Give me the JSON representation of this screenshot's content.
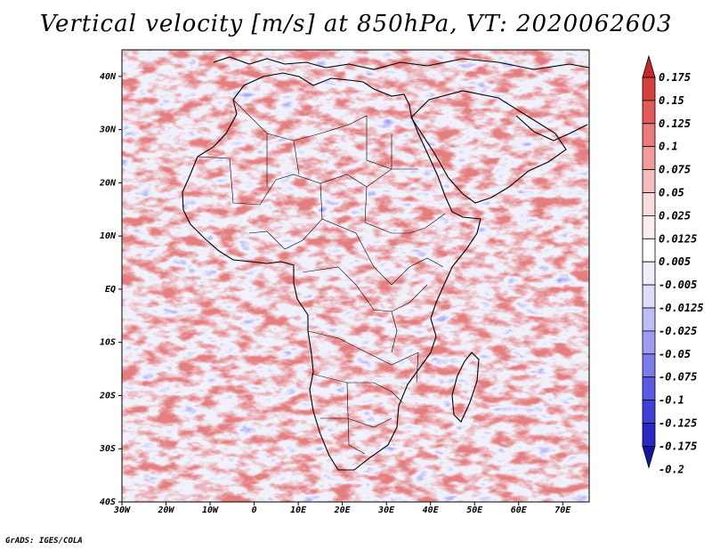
{
  "title": "Vertical velocity [m/s] at 850hPa, VT: 2020062603",
  "credit": "GrADS: IGES/COLA",
  "map": {
    "region": "Africa",
    "lon_range": [
      -30,
      76
    ],
    "lat_range": [
      -40,
      45
    ],
    "lon_ticks": [
      "30W",
      "20W",
      "10W",
      "0",
      "10E",
      "20E",
      "30E",
      "40E",
      "50E",
      "60E",
      "70E"
    ],
    "lat_ticks": [
      "40N",
      "30N",
      "20N",
      "10N",
      "EQ",
      "10S",
      "20S",
      "30S",
      "40S"
    ]
  },
  "colorbar": {
    "labels": [
      "0.175",
      "0.15",
      "0.125",
      "0.1",
      "0.075",
      "0.05",
      "0.025",
      "0.0125",
      "0.005",
      "-0.005",
      "-0.0125",
      "-0.025",
      "-0.05",
      "-0.075",
      "-0.1",
      "-0.125",
      "-0.175",
      "-0.2"
    ],
    "colors": [
      "#c62828",
      "#d84040",
      "#e35a5a",
      "#ec7b7b",
      "#f29c9c",
      "#f7bdbd",
      "#fbdcdc",
      "#fdeeee",
      "#ffffff",
      "#eeeefd",
      "#dcdcfb",
      "#bdbdf7",
      "#9c9cf2",
      "#7b7bec",
      "#5a5ae3",
      "#4040d8",
      "#2828c6",
      "#15159e"
    ]
  }
}
